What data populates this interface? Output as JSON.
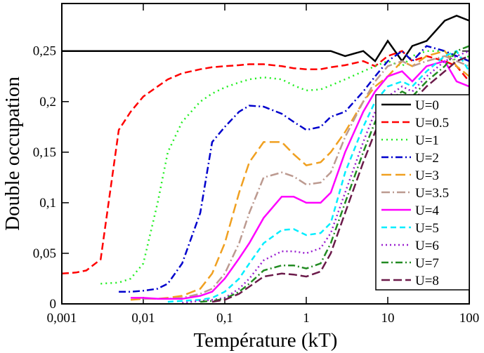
{
  "chart_data": {
    "type": "line",
    "xlabel": "Température (kT)",
    "ylabel": "Double occupation",
    "xscale": "log",
    "xlim": [
      0.001,
      100
    ],
    "ylim": [
      0,
      0.297
    ],
    "xticks": [
      {
        "value": 0.001,
        "label": "0,001"
      },
      {
        "value": 0.01,
        "label": "0,01"
      },
      {
        "value": 0.1,
        "label": "0,1"
      },
      1,
      10,
      100
    ],
    "yticks": [
      0,
      {
        "value": 0.05,
        "label": "0,05"
      },
      {
        "value": 0.1,
        "label": "0,1"
      },
      {
        "value": 0.15,
        "label": "0,15"
      },
      {
        "value": 0.2,
        "label": "0,2"
      },
      {
        "value": 0.25,
        "label": "0,25"
      }
    ],
    "legend": "lower right",
    "x": [
      0.001,
      0.0015,
      0.002,
      0.003,
      0.005,
      0.007,
      0.01,
      0.015,
      0.02,
      0.03,
      0.05,
      0.07,
      0.1,
      0.15,
      0.2,
      0.3,
      0.5,
      0.7,
      1,
      1.5,
      2,
      3,
      5,
      7,
      10,
      15,
      20,
      30,
      50,
      70,
      100
    ],
    "series": [
      {
        "name": "U=0",
        "color": "#000000",
        "dash": [],
        "values": [
          0.25,
          0.25,
          0.25,
          0.25,
          0.25,
          0.25,
          0.25,
          0.25,
          0.25,
          0.25,
          0.25,
          0.25,
          0.25,
          0.25,
          0.25,
          0.25,
          0.25,
          0.25,
          0.25,
          0.25,
          0.25,
          0.245,
          0.25,
          0.24,
          0.26,
          0.24,
          0.255,
          0.26,
          0.28,
          0.285,
          0.28
        ]
      },
      {
        "name": "U=0.5",
        "color": "#ff0000",
        "dash": [
          10,
          5
        ],
        "values": [
          0.03,
          0.031,
          0.033,
          0.044,
          0.172,
          0.19,
          0.205,
          0.215,
          0.222,
          0.228,
          0.232,
          0.234,
          0.235,
          0.236,
          0.237,
          0.237,
          0.235,
          0.233,
          0.232,
          0.232,
          0.234,
          0.236,
          0.24,
          0.235,
          0.245,
          0.25,
          0.24,
          0.245,
          0.24,
          0.235,
          0.22
        ]
      },
      {
        "name": "U=1",
        "color": "#22ee22",
        "dash": [
          2,
          5
        ],
        "values": [
          null,
          null,
          null,
          0.02,
          0.021,
          0.025,
          0.04,
          0.1,
          0.15,
          0.18,
          0.2,
          0.208,
          0.214,
          0.219,
          0.222,
          0.224,
          0.222,
          0.216,
          0.211,
          0.212,
          0.216,
          0.222,
          0.23,
          0.235,
          0.24,
          0.235,
          0.245,
          0.25,
          0.25,
          0.24,
          0.245
        ]
      },
      {
        "name": "U=2",
        "color": "#0000cc",
        "dash": [
          10,
          4,
          2,
          4
        ],
        "values": [
          null,
          null,
          null,
          null,
          0.012,
          0.012,
          0.013,
          0.015,
          0.02,
          0.04,
          0.09,
          0.16,
          0.175,
          0.19,
          0.196,
          0.195,
          0.188,
          0.18,
          0.172,
          0.175,
          0.185,
          0.19,
          0.21,
          0.225,
          0.24,
          0.25,
          0.24,
          0.255,
          0.25,
          0.245,
          0.24
        ]
      },
      {
        "name": "U=3",
        "color": "#f0a020",
        "dash": [
          14,
          6
        ],
        "values": [
          null,
          null,
          null,
          null,
          null,
          0.004,
          0.005,
          0.005,
          0.006,
          0.008,
          0.015,
          0.03,
          0.06,
          0.11,
          0.14,
          0.16,
          0.16,
          0.148,
          0.137,
          0.14,
          0.15,
          0.17,
          0.2,
          0.215,
          0.225,
          0.24,
          0.235,
          0.245,
          0.25,
          0.235,
          0.225
        ]
      },
      {
        "name": "U=3.5",
        "color": "#bc9a90",
        "dash": [
          12,
          4,
          2,
          4
        ],
        "values": [
          null,
          null,
          null,
          null,
          null,
          null,
          0.005,
          0.005,
          0.005,
          0.006,
          0.01,
          0.015,
          0.03,
          0.06,
          0.09,
          0.125,
          0.13,
          0.126,
          0.118,
          0.12,
          0.13,
          0.165,
          0.2,
          0.22,
          0.235,
          0.24,
          0.235,
          0.24,
          0.245,
          0.24,
          0.235
        ]
      },
      {
        "name": "U=4",
        "color": "#ff00ff",
        "dash": [],
        "values": [
          null,
          null,
          null,
          null,
          null,
          0.006,
          0.006,
          0.005,
          0.005,
          0.005,
          0.008,
          0.012,
          0.025,
          0.045,
          0.06,
          0.085,
          0.106,
          0.106,
          0.1,
          0.1,
          0.11,
          0.15,
          0.19,
          0.21,
          0.225,
          0.23,
          0.22,
          0.235,
          0.24,
          0.22,
          0.215
        ]
      },
      {
        "name": "U=5",
        "color": "#00eeff",
        "dash": [
          8,
          5
        ],
        "values": [
          null,
          null,
          null,
          null,
          null,
          null,
          null,
          null,
          0.002,
          0.003,
          0.004,
          0.006,
          0.012,
          0.025,
          0.04,
          0.06,
          0.073,
          0.074,
          0.068,
          0.07,
          0.08,
          0.13,
          0.175,
          0.2,
          0.215,
          0.22,
          0.215,
          0.23,
          0.245,
          0.25,
          0.23
        ]
      },
      {
        "name": "U=6",
        "color": "#9a20d0",
        "dash": [
          2,
          4
        ],
        "values": [
          null,
          null,
          null,
          null,
          null,
          null,
          null,
          null,
          null,
          0.001,
          0.003,
          0.004,
          0.006,
          0.015,
          0.025,
          0.043,
          0.052,
          0.052,
          0.05,
          0.055,
          0.07,
          0.11,
          0.16,
          0.19,
          0.205,
          0.215,
          0.21,
          0.225,
          0.24,
          0.245,
          0.25
        ]
      },
      {
        "name": "U=7",
        "color": "#228b22",
        "dash": [
          10,
          4,
          2,
          4
        ],
        "values": [
          null,
          null,
          null,
          null,
          null,
          null,
          null,
          null,
          null,
          null,
          0.002,
          0.003,
          0.005,
          0.012,
          0.02,
          0.033,
          0.038,
          0.038,
          0.035,
          0.04,
          0.06,
          0.1,
          0.15,
          0.18,
          0.2,
          0.21,
          0.205,
          0.22,
          0.235,
          0.25,
          0.255
        ]
      },
      {
        "name": "U=8",
        "color": "#6b1a4a",
        "dash": [
          12,
          5
        ],
        "values": [
          null,
          null,
          null,
          null,
          null,
          null,
          null,
          null,
          null,
          null,
          null,
          0.002,
          0.004,
          0.01,
          0.017,
          0.027,
          0.03,
          0.029,
          0.027,
          0.032,
          0.05,
          0.09,
          0.14,
          0.17,
          0.195,
          0.2,
          0.2,
          0.215,
          0.23,
          0.24,
          0.245
        ]
      }
    ]
  }
}
